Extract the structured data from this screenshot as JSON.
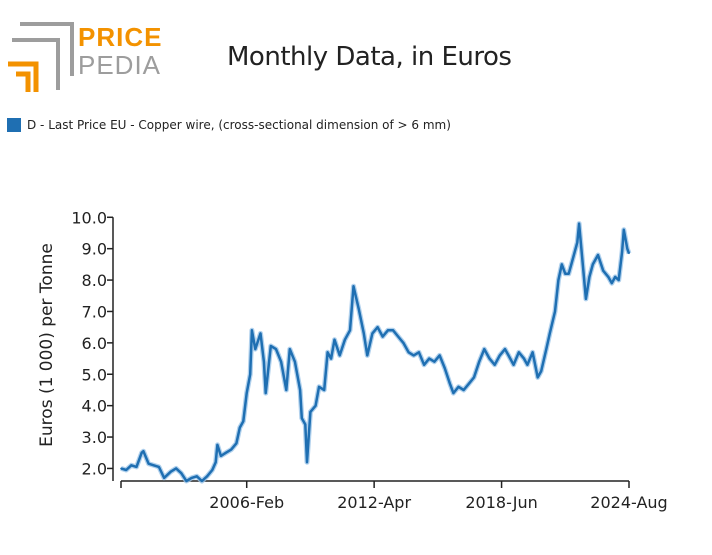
{
  "brand": {
    "line1": "PRICE",
    "line2": "PEDIA"
  },
  "colors": {
    "series": "#1f6fb2",
    "band": "#9ec6e8",
    "brand_orange": "#f39200",
    "brand_grey": "#9d9d9d"
  },
  "chart_data": {
    "type": "line",
    "title": "Monthly Data, in Euros",
    "ylabel": "Euros (1 000) per Tonne",
    "xlabel": "",
    "ylim": [
      1.6,
      10.2
    ],
    "yticks": [
      2.0,
      3.0,
      4.0,
      5.0,
      6.0,
      7.0,
      8.0,
      9.0,
      10.0
    ],
    "ytick_labels": [
      "2.0",
      "3.0",
      "4.0",
      "5.0",
      "6.0",
      "7.0",
      "8.0",
      "9.0",
      "10.0"
    ],
    "xlim": [
      "2000-01",
      "2024-08"
    ],
    "xticks": [
      "2000-01",
      "2006-02",
      "2012-04",
      "2018-06",
      "2024-08"
    ],
    "xtick_labels": [
      "",
      "2006-Feb",
      "2012-Apr",
      "2018-Jun",
      "2024-Aug"
    ],
    "grid": false,
    "legend_position": "top-left",
    "series": [
      {
        "name": "D - Last Price EU - Copper wire, (cross-sectional dimension of > 6 mm)",
        "points": [
          [
            "2000-01",
            2.0
          ],
          [
            "2000-04",
            1.95
          ],
          [
            "2000-07",
            2.1
          ],
          [
            "2000-10",
            2.05
          ],
          [
            "2001-01",
            2.5
          ],
          [
            "2001-02",
            2.55
          ],
          [
            "2001-05",
            2.15
          ],
          [
            "2001-08",
            2.1
          ],
          [
            "2001-11",
            2.05
          ],
          [
            "2002-02",
            1.7
          ],
          [
            "2002-06",
            1.9
          ],
          [
            "2002-09",
            2.0
          ],
          [
            "2002-12",
            1.85
          ],
          [
            "2003-03",
            1.6
          ],
          [
            "2003-06",
            1.7
          ],
          [
            "2003-09",
            1.75
          ],
          [
            "2003-12",
            1.6
          ],
          [
            "2004-03",
            1.75
          ],
          [
            "2004-06",
            1.95
          ],
          [
            "2004-08",
            2.2
          ],
          [
            "2004-09",
            2.75
          ],
          [
            "2004-11",
            2.4
          ],
          [
            "2005-02",
            2.5
          ],
          [
            "2005-05",
            2.6
          ],
          [
            "2005-08",
            2.8
          ],
          [
            "2005-10",
            3.3
          ],
          [
            "2005-12",
            3.5
          ],
          [
            "2006-02",
            4.4
          ],
          [
            "2006-04",
            5.0
          ],
          [
            "2006-05",
            6.4
          ],
          [
            "2006-07",
            5.8
          ],
          [
            "2006-10",
            6.3
          ],
          [
            "2006-12",
            5.4
          ],
          [
            "2007-01",
            4.4
          ],
          [
            "2007-04",
            5.9
          ],
          [
            "2007-07",
            5.8
          ],
          [
            "2007-10",
            5.4
          ],
          [
            "2008-01",
            4.5
          ],
          [
            "2008-03",
            5.8
          ],
          [
            "2008-06",
            5.4
          ],
          [
            "2008-09",
            4.5
          ],
          [
            "2008-10",
            3.6
          ],
          [
            "2008-12",
            3.4
          ],
          [
            "2009-01",
            2.2
          ],
          [
            "2009-03",
            3.8
          ],
          [
            "2009-06",
            4.0
          ],
          [
            "2009-08",
            4.6
          ],
          [
            "2009-11",
            4.5
          ],
          [
            "2010-01",
            5.7
          ],
          [
            "2010-03",
            5.5
          ],
          [
            "2010-05",
            6.1
          ],
          [
            "2010-08",
            5.6
          ],
          [
            "2010-11",
            6.1
          ],
          [
            "2011-02",
            6.4
          ],
          [
            "2011-04",
            7.8
          ],
          [
            "2011-07",
            7.1
          ],
          [
            "2011-10",
            6.3
          ],
          [
            "2011-12",
            5.6
          ],
          [
            "2012-03",
            6.3
          ],
          [
            "2012-06",
            6.5
          ],
          [
            "2012-09",
            6.2
          ],
          [
            "2012-12",
            6.4
          ],
          [
            "2013-03",
            6.4
          ],
          [
            "2013-06",
            6.2
          ],
          [
            "2013-09",
            6.0
          ],
          [
            "2013-12",
            5.7
          ],
          [
            "2014-03",
            5.6
          ],
          [
            "2014-06",
            5.7
          ],
          [
            "2014-09",
            5.3
          ],
          [
            "2014-12",
            5.5
          ],
          [
            "2015-03",
            5.4
          ],
          [
            "2015-06",
            5.6
          ],
          [
            "2015-09",
            5.2
          ],
          [
            "2015-12",
            4.7
          ],
          [
            "2016-02",
            4.4
          ],
          [
            "2016-05",
            4.6
          ],
          [
            "2016-08",
            4.5
          ],
          [
            "2016-11",
            4.7
          ],
          [
            "2017-02",
            4.9
          ],
          [
            "2017-05",
            5.4
          ],
          [
            "2017-08",
            5.8
          ],
          [
            "2017-11",
            5.5
          ],
          [
            "2018-02",
            5.3
          ],
          [
            "2018-05",
            5.6
          ],
          [
            "2018-08",
            5.8
          ],
          [
            "2018-10",
            5.6
          ],
          [
            "2019-01",
            5.3
          ],
          [
            "2019-04",
            5.7
          ],
          [
            "2019-07",
            5.5
          ],
          [
            "2019-09",
            5.3
          ],
          [
            "2019-12",
            5.7
          ],
          [
            "2020-03",
            4.9
          ],
          [
            "2020-05",
            5.1
          ],
          [
            "2020-08",
            5.8
          ],
          [
            "2020-10",
            6.3
          ],
          [
            "2021-01",
            7.0
          ],
          [
            "2021-03",
            8.0
          ],
          [
            "2021-05",
            8.5
          ],
          [
            "2021-07",
            8.2
          ],
          [
            "2021-09",
            8.2
          ],
          [
            "2021-11",
            8.6
          ],
          [
            "2022-02",
            9.2
          ],
          [
            "2022-03",
            9.8
          ],
          [
            "2022-05",
            8.6
          ],
          [
            "2022-07",
            7.4
          ],
          [
            "2022-09",
            8.1
          ],
          [
            "2022-11",
            8.5
          ],
          [
            "2023-02",
            8.8
          ],
          [
            "2023-05",
            8.3
          ],
          [
            "2023-08",
            8.1
          ],
          [
            "2023-10",
            7.9
          ],
          [
            "2023-12",
            8.1
          ],
          [
            "2024-02",
            8.0
          ],
          [
            "2024-04",
            8.9
          ],
          [
            "2024-05",
            9.6
          ],
          [
            "2024-07",
            9.0
          ],
          [
            "2024-08",
            8.85
          ]
        ]
      }
    ]
  }
}
